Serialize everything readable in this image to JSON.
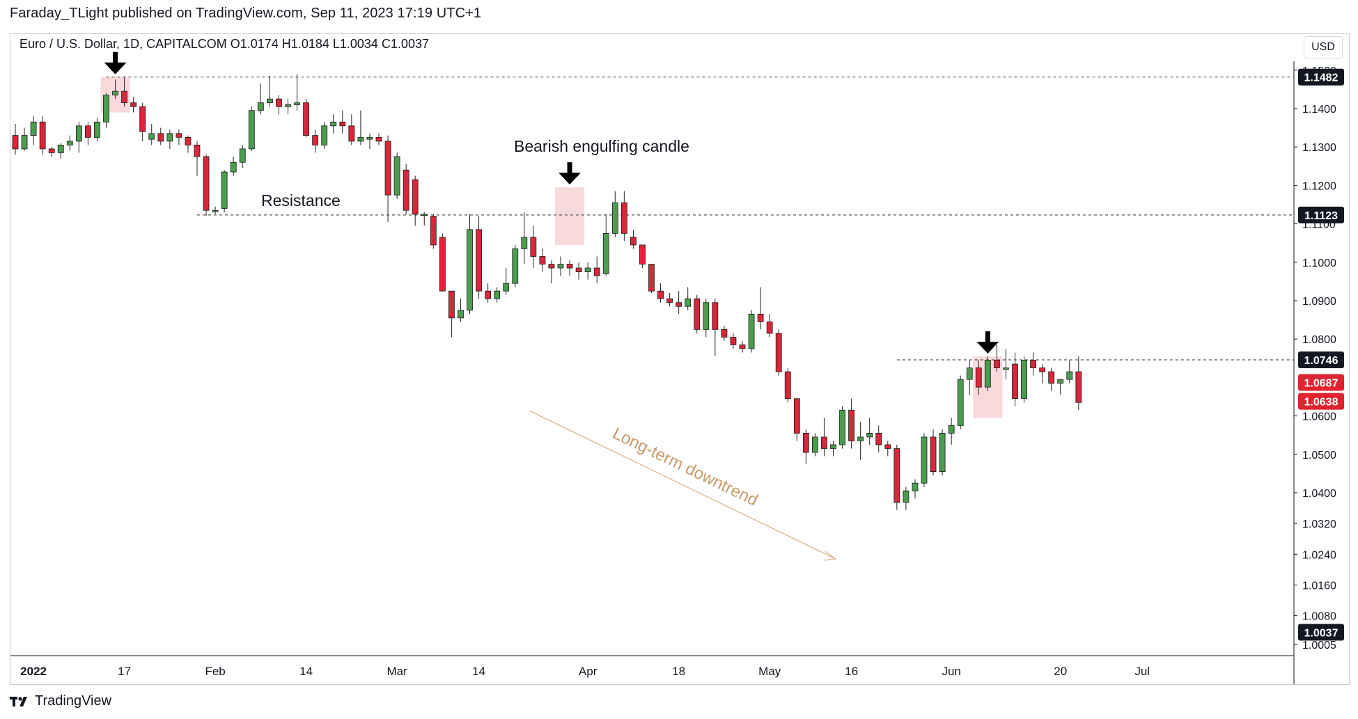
{
  "header": {
    "published": "Faraday_TLight published on TradingView.com, Sep 11, 2023 17:19 UTC+1",
    "symbol_line": "Euro / U.S. Dollar, 1D, CAPITALCOM  O1.0174  H1.0184  L1.0034  C1.0037",
    "currency_button": "USD"
  },
  "footer": {
    "brand": "TradingView",
    "logo_icon": "tradingview-logo-icon"
  },
  "colors": {
    "bull": "#4c9c4f",
    "bear": "#d8263a",
    "highlight": "#f7d2d6",
    "trend_line": "#d9b48a",
    "trend_text": "#c99a6a",
    "grid_line": "#555555"
  },
  "chart_data": {
    "type": "candlestick",
    "title": "",
    "instrument": "Euro / U.S. Dollar",
    "timeframe": "1D",
    "y_axis": {
      "ticks": [
        "1.1500",
        "1.1400",
        "1.1300",
        "1.1200",
        "1.1100",
        "1.1000",
        "1.0900",
        "1.0800",
        "1.0600",
        "1.0500",
        "1.0400",
        "1.0320",
        "1.0240",
        "1.0160",
        "1.0080",
        "1.0005"
      ],
      "ylim": [
        1.0005,
        1.15
      ]
    },
    "x_axis": {
      "ticks": [
        {
          "label": "2022",
          "bold": true,
          "index": 2
        },
        {
          "label": "17",
          "bold": false,
          "index": 12
        },
        {
          "label": "Feb",
          "bold": false,
          "index": 22
        },
        {
          "label": "14",
          "bold": false,
          "index": 32
        },
        {
          "label": "Mar",
          "bold": false,
          "index": 42
        },
        {
          "label": "14",
          "bold": false,
          "index": 51
        },
        {
          "label": "Apr",
          "bold": false,
          "index": 63
        },
        {
          "label": "18",
          "bold": false,
          "index": 73
        },
        {
          "label": "May",
          "bold": false,
          "index": 83
        },
        {
          "label": "16",
          "bold": false,
          "index": 92
        },
        {
          "label": "Jun",
          "bold": false,
          "index": 103
        },
        {
          "label": "20",
          "bold": false,
          "index": 115
        },
        {
          "label": "Jul",
          "bold": false,
          "index": 124
        }
      ]
    },
    "price_labels": [
      {
        "value": "1.1482",
        "price": 1.1482,
        "style": "dark"
      },
      {
        "value": "1.1123",
        "price": 1.1123,
        "style": "dark"
      },
      {
        "value": "1.0746",
        "price": 1.0746,
        "style": "dark"
      },
      {
        "value": "1.0687",
        "price": 1.0687,
        "style": "red"
      },
      {
        "value": "1.0638",
        "price": 1.0638,
        "style": "red"
      },
      {
        "value": "1.0037",
        "price": 1.0037,
        "style": "dark"
      }
    ],
    "levels": [
      {
        "price": 1.1482,
        "from_index": 10
      },
      {
        "price": 1.1123,
        "from_index": 20
      },
      {
        "price": 1.0746,
        "from_index": 97
      }
    ],
    "annotations": {
      "resistance": "Resistance",
      "engulfing": "Bearish engulfing candle",
      "trend": "Long-term downtrend"
    },
    "highlights": [
      {
        "from_index": 10,
        "to_index": 12,
        "high": 1.1482,
        "low": 1.139
      },
      {
        "from_index": 60,
        "to_index": 62,
        "high": 1.1195,
        "low": 1.1045
      },
      {
        "from_index": 106,
        "to_index": 108,
        "high": 1.0755,
        "low": 1.0595
      }
    ],
    "arrows": [
      {
        "index": 11,
        "price": 1.1482
      },
      {
        "index": 61,
        "price": 1.1195
      },
      {
        "index": 107,
        "price": 1.0755
      }
    ],
    "candles": [
      {
        "o": 1.133,
        "h": 1.136,
        "l": 1.128,
        "c": 1.1295
      },
      {
        "o": 1.1295,
        "h": 1.135,
        "l": 1.129,
        "c": 1.133
      },
      {
        "o": 1.133,
        "h": 1.138,
        "l": 1.1305,
        "c": 1.1365
      },
      {
        "o": 1.1365,
        "h": 1.138,
        "l": 1.128,
        "c": 1.1295
      },
      {
        "o": 1.1295,
        "h": 1.13,
        "l": 1.1275,
        "c": 1.1285
      },
      {
        "o": 1.1285,
        "h": 1.131,
        "l": 1.127,
        "c": 1.1305
      },
      {
        "o": 1.1305,
        "h": 1.133,
        "l": 1.129,
        "c": 1.1315
      },
      {
        "o": 1.1315,
        "h": 1.1365,
        "l": 1.1285,
        "c": 1.1355
      },
      {
        "o": 1.1355,
        "h": 1.1365,
        "l": 1.1305,
        "c": 1.1325
      },
      {
        "o": 1.1325,
        "h": 1.1375,
        "l": 1.1315,
        "c": 1.1365
      },
      {
        "o": 1.1365,
        "h": 1.144,
        "l": 1.135,
        "c": 1.1435
      },
      {
        "o": 1.1435,
        "h": 1.1475,
        "l": 1.1425,
        "c": 1.1445
      },
      {
        "o": 1.1445,
        "h": 1.1482,
        "l": 1.1405,
        "c": 1.1415
      },
      {
        "o": 1.1415,
        "h": 1.143,
        "l": 1.139,
        "c": 1.1405
      },
      {
        "o": 1.1405,
        "h": 1.1415,
        "l": 1.1315,
        "c": 1.134
      },
      {
        "o": 1.132,
        "h": 1.136,
        "l": 1.1305,
        "c": 1.1335
      },
      {
        "o": 1.1335,
        "h": 1.135,
        "l": 1.1305,
        "c": 1.1315
      },
      {
        "o": 1.1315,
        "h": 1.1345,
        "l": 1.1295,
        "c": 1.1335
      },
      {
        "o": 1.1335,
        "h": 1.1345,
        "l": 1.1305,
        "c": 1.1325
      },
      {
        "o": 1.1325,
        "h": 1.133,
        "l": 1.1285,
        "c": 1.1305
      },
      {
        "o": 1.1305,
        "h": 1.1315,
        "l": 1.1225,
        "c": 1.1275
      },
      {
        "o": 1.1275,
        "h": 1.128,
        "l": 1.112,
        "c": 1.1135
      },
      {
        "o": 1.1135,
        "h": 1.1145,
        "l": 1.1125,
        "c": 1.1135
      },
      {
        "o": 1.114,
        "h": 1.124,
        "l": 1.113,
        "c": 1.1235
      },
      {
        "o": 1.1235,
        "h": 1.1275,
        "l": 1.1225,
        "c": 1.126
      },
      {
        "o": 1.126,
        "h": 1.1305,
        "l": 1.1245,
        "c": 1.1295
      },
      {
        "o": 1.1295,
        "h": 1.1405,
        "l": 1.129,
        "c": 1.1395
      },
      {
        "o": 1.1395,
        "h": 1.1465,
        "l": 1.1385,
        "c": 1.1415
      },
      {
        "o": 1.1415,
        "h": 1.1485,
        "l": 1.1405,
        "c": 1.1425
      },
      {
        "o": 1.1425,
        "h": 1.1435,
        "l": 1.1385,
        "c": 1.1405
      },
      {
        "o": 1.1405,
        "h": 1.1425,
        "l": 1.1385,
        "c": 1.141
      },
      {
        "o": 1.141,
        "h": 1.149,
        "l": 1.1395,
        "c": 1.1415
      },
      {
        "o": 1.1415,
        "h": 1.1425,
        "l": 1.1325,
        "c": 1.133
      },
      {
        "o": 1.133,
        "h": 1.1345,
        "l": 1.1285,
        "c": 1.1305
      },
      {
        "o": 1.1305,
        "h": 1.1365,
        "l": 1.1295,
        "c": 1.1355
      },
      {
        "o": 1.1355,
        "h": 1.1385,
        "l": 1.1335,
        "c": 1.1365
      },
      {
        "o": 1.1365,
        "h": 1.1395,
        "l": 1.1335,
        "c": 1.1355
      },
      {
        "o": 1.1355,
        "h": 1.1385,
        "l": 1.1305,
        "c": 1.1315
      },
      {
        "o": 1.1315,
        "h": 1.1395,
        "l": 1.1305,
        "c": 1.1325
      },
      {
        "o": 1.132,
        "h": 1.1335,
        "l": 1.1295,
        "c": 1.1325
      },
      {
        "o": 1.1325,
        "h": 1.1335,
        "l": 1.1305,
        "c": 1.1315
      },
      {
        "o": 1.1315,
        "h": 1.133,
        "l": 1.1105,
        "c": 1.1175
      },
      {
        "o": 1.1175,
        "h": 1.1285,
        "l": 1.1165,
        "c": 1.1275
      },
      {
        "o": 1.124,
        "h": 1.1255,
        "l": 1.1125,
        "c": 1.1135
      },
      {
        "o": 1.1215,
        "h": 1.1225,
        "l": 1.1095,
        "c": 1.1125
      },
      {
        "o": 1.1125,
        "h": 1.113,
        "l": 1.1095,
        "c": 1.1125
      },
      {
        "o": 1.112,
        "h": 1.1125,
        "l": 1.1035,
        "c": 1.1045
      },
      {
        "o": 1.1065,
        "h": 1.1075,
        "l": 1.0925,
        "c": 1.0925
      },
      {
        "o": 1.0925,
        "h": 1.0925,
        "l": 1.0805,
        "c": 1.0855
      },
      {
        "o": 1.0855,
        "h": 1.0905,
        "l": 1.0845,
        "c": 1.0875
      },
      {
        "o": 1.0875,
        "h": 1.1125,
        "l": 1.0865,
        "c": 1.1085
      },
      {
        "o": 1.1085,
        "h": 1.112,
        "l": 1.0905,
        "c": 1.0925
      },
      {
        "o": 1.0925,
        "h": 1.0945,
        "l": 1.0895,
        "c": 1.0905
      },
      {
        "o": 1.0905,
        "h": 1.0935,
        "l": 1.0895,
        "c": 1.0925
      },
      {
        "o": 1.0925,
        "h": 1.0985,
        "l": 1.0915,
        "c": 1.0945
      },
      {
        "o": 1.0945,
        "h": 1.1045,
        "l": 1.0935,
        "c": 1.1035
      },
      {
        "o": 1.1035,
        "h": 1.113,
        "l": 1.0995,
        "c": 1.1065
      },
      {
        "o": 1.1065,
        "h": 1.1095,
        "l": 1.0985,
        "c": 1.1015
      },
      {
        "o": 1.1015,
        "h": 1.1035,
        "l": 1.0975,
        "c": 1.0995
      },
      {
        "o": 1.0995,
        "h": 1.1005,
        "l": 1.0945,
        "c": 1.0985
      },
      {
        "o": 1.0985,
        "h": 1.1015,
        "l": 1.0965,
        "c": 1.0995
      },
      {
        "o": 1.0995,
        "h": 1.1005,
        "l": 1.0965,
        "c": 1.0985
      },
      {
        "o": 1.0985,
        "h": 1.1,
        "l": 1.0955,
        "c": 1.0975
      },
      {
        "o": 1.0975,
        "h": 1.1,
        "l": 1.0955,
        "c": 1.0985
      },
      {
        "o": 1.0985,
        "h": 1.1015,
        "l": 1.0945,
        "c": 1.0965
      },
      {
        "o": 1.097,
        "h": 1.1125,
        "l": 1.0965,
        "c": 1.1075
      },
      {
        "o": 1.1075,
        "h": 1.1185,
        "l": 1.1065,
        "c": 1.1155
      },
      {
        "o": 1.1155,
        "h": 1.1185,
        "l": 1.1055,
        "c": 1.1075
      },
      {
        "o": 1.1065,
        "h": 1.1085,
        "l": 1.1035,
        "c": 1.1045
      },
      {
        "o": 1.1045,
        "h": 1.1045,
        "l": 1.0985,
        "c": 1.0995
      },
      {
        "o": 1.0995,
        "h": 1.0995,
        "l": 1.092,
        "c": 1.0925
      },
      {
        "o": 1.0925,
        "h": 1.0945,
        "l": 1.0895,
        "c": 1.0905
      },
      {
        "o": 1.0905,
        "h": 1.092,
        "l": 1.0885,
        "c": 1.0895
      },
      {
        "o": 1.0895,
        "h": 1.0925,
        "l": 1.0865,
        "c": 1.0885
      },
      {
        "o": 1.0885,
        "h": 1.0935,
        "l": 1.0875,
        "c": 1.0905
      },
      {
        "o": 1.0905,
        "h": 1.0915,
        "l": 1.0815,
        "c": 1.0825
      },
      {
        "o": 1.0825,
        "h": 1.0905,
        "l": 1.0805,
        "c": 1.0895
      },
      {
        "o": 1.0895,
        "h": 1.0905,
        "l": 1.0755,
        "c": 1.0825
      },
      {
        "o": 1.0825,
        "h": 1.0835,
        "l": 1.0795,
        "c": 1.0805
      },
      {
        "o": 1.0805,
        "h": 1.0815,
        "l": 1.0775,
        "c": 1.0785
      },
      {
        "o": 1.0785,
        "h": 1.0795,
        "l": 1.0765,
        "c": 1.0775
      },
      {
        "o": 1.0775,
        "h": 1.0875,
        "l": 1.0765,
        "c": 1.0865
      },
      {
        "o": 1.0865,
        "h": 1.0935,
        "l": 1.0825,
        "c": 1.0845
      },
      {
        "o": 1.0845,
        "h": 1.0865,
        "l": 1.0805,
        "c": 1.0815
      },
      {
        "o": 1.0815,
        "h": 1.0825,
        "l": 1.0705,
        "c": 1.0715
      },
      {
        "o": 1.0715,
        "h": 1.0725,
        "l": 1.0635,
        "c": 1.0645
      },
      {
        "o": 1.0645,
        "h": 1.0645,
        "l": 1.0535,
        "c": 1.0555
      },
      {
        "o": 1.0555,
        "h": 1.0565,
        "l": 1.0475,
        "c": 1.0505
      },
      {
        "o": 1.0505,
        "h": 1.0555,
        "l": 1.0495,
        "c": 1.0545
      },
      {
        "o": 1.0545,
        "h": 1.0595,
        "l": 1.0495,
        "c": 1.0515
      },
      {
        "o": 1.0515,
        "h": 1.0535,
        "l": 1.0495,
        "c": 1.0525
      },
      {
        "o": 1.0525,
        "h": 1.0625,
        "l": 1.0515,
        "c": 1.0615
      },
      {
        "o": 1.0615,
        "h": 1.0645,
        "l": 1.0515,
        "c": 1.0535
      },
      {
        "o": 1.0535,
        "h": 1.0585,
        "l": 1.0485,
        "c": 1.0545
      },
      {
        "o": 1.0545,
        "h": 1.0595,
        "l": 1.0525,
        "c": 1.0555
      },
      {
        "o": 1.0555,
        "h": 1.0575,
        "l": 1.0505,
        "c": 1.0525
      },
      {
        "o": 1.0525,
        "h": 1.0535,
        "l": 1.0495,
        "c": 1.0515
      },
      {
        "o": 1.0515,
        "h": 1.0525,
        "l": 1.0355,
        "c": 1.0375
      },
      {
        "o": 1.0375,
        "h": 1.0415,
        "l": 1.0355,
        "c": 1.0405
      },
      {
        "o": 1.0405,
        "h": 1.0435,
        "l": 1.0385,
        "c": 1.0425
      },
      {
        "o": 1.0425,
        "h": 1.0555,
        "l": 1.0415,
        "c": 1.0545
      },
      {
        "o": 1.0545,
        "h": 1.0565,
        "l": 1.0445,
        "c": 1.0455
      },
      {
        "o": 1.0455,
        "h": 1.0565,
        "l": 1.0445,
        "c": 1.0555
      },
      {
        "o": 1.0555,
        "h": 1.0595,
        "l": 1.0525,
        "c": 1.0575
      },
      {
        "o": 1.0575,
        "h": 1.0705,
        "l": 1.0565,
        "c": 1.0695
      },
      {
        "o": 1.0695,
        "h": 1.0745,
        "l": 1.0655,
        "c": 1.0725
      },
      {
        "o": 1.0725,
        "h": 1.0745,
        "l": 1.0655,
        "c": 1.0675
      },
      {
        "o": 1.0675,
        "h": 1.0755,
        "l": 1.0665,
        "c": 1.0745
      },
      {
        "o": 1.0745,
        "h": 1.0785,
        "l": 1.0715,
        "c": 1.0725
      },
      {
        "o": 1.0725,
        "h": 1.0775,
        "l": 1.0695,
        "c": 1.0725
      },
      {
        "o": 1.0735,
        "h": 1.0765,
        "l": 1.0625,
        "c": 1.0645
      },
      {
        "o": 1.0645,
        "h": 1.0755,
        "l": 1.0635,
        "c": 1.0745
      },
      {
        "o": 1.0745,
        "h": 1.0765,
        "l": 1.0705,
        "c": 1.0725
      },
      {
        "o": 1.0725,
        "h": 1.0735,
        "l": 1.0685,
        "c": 1.0715
      },
      {
        "o": 1.0715,
        "h": 1.0725,
        "l": 1.0665,
        "c": 1.0685
      },
      {
        "o": 1.0685,
        "h": 1.0695,
        "l": 1.0655,
        "c": 1.0695
      },
      {
        "o": 1.0695,
        "h": 1.0745,
        "l": 1.0685,
        "c": 1.0715
      },
      {
        "o": 1.0715,
        "h": 1.0755,
        "l": 1.0615,
        "c": 1.0635
      }
    ]
  }
}
